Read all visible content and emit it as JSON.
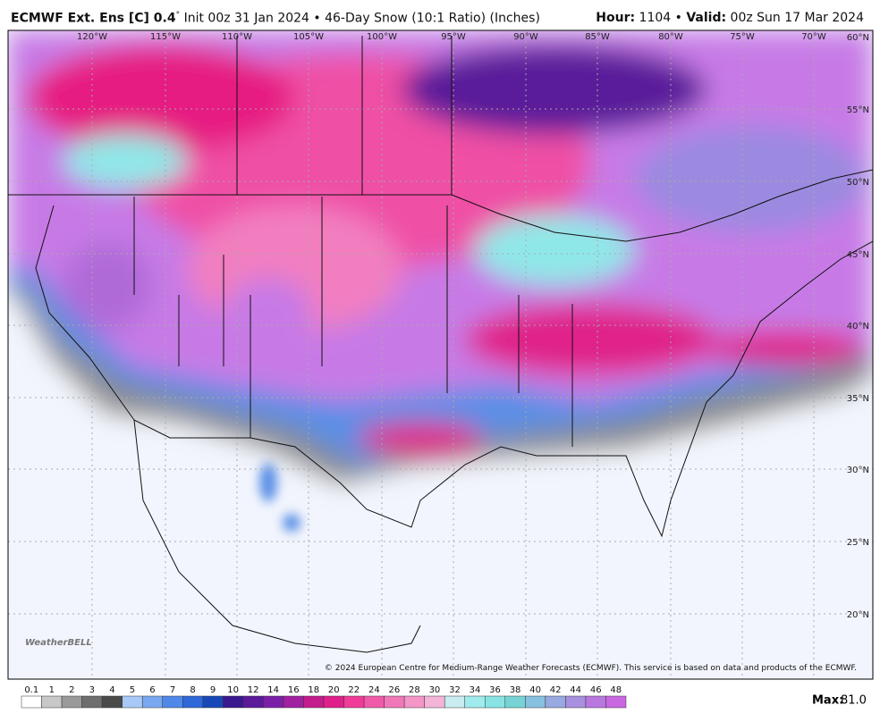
{
  "header": {
    "model": "ECMWF Ext. Ens [C] 0.4",
    "degree": "°",
    "description": "Init 00z 31 Jan 2024 • 46-Day Snow (10:1 Ratio) (Inches)",
    "hour_label": "Hour:",
    "hour": "1104",
    "valid_label": "Valid:",
    "valid": "00z Sun 17 Mar 2024"
  },
  "map": {
    "longitude_labels": [
      "120°W",
      "115°W",
      "110°W",
      "105°W",
      "100°W",
      "95°W",
      "90°W",
      "85°W",
      "80°W",
      "75°W",
      "70°W"
    ],
    "latitude_labels": [
      "60°N",
      "55°N",
      "50°N",
      "45°N",
      "40°N",
      "35°N",
      "30°N",
      "25°N",
      "20°N"
    ],
    "copyright": "© 2024 European Centre for Medium-Range Weather Forecasts (ECMWF). This service is based on data and products of the ECMWF.",
    "logo": "WeatherBELL"
  },
  "colorbar": {
    "labels": [
      "0.1",
      "1",
      "2",
      "3",
      "4",
      "5",
      "6",
      "7",
      "8",
      "9",
      "10",
      "12",
      "14",
      "16",
      "18",
      "20",
      "22",
      "24",
      "26",
      "28",
      "30",
      "32",
      "34",
      "36",
      "38",
      "40",
      "42",
      "44",
      "46",
      "48"
    ],
    "max_label": "Max:",
    "max": "81.0"
  }
}
